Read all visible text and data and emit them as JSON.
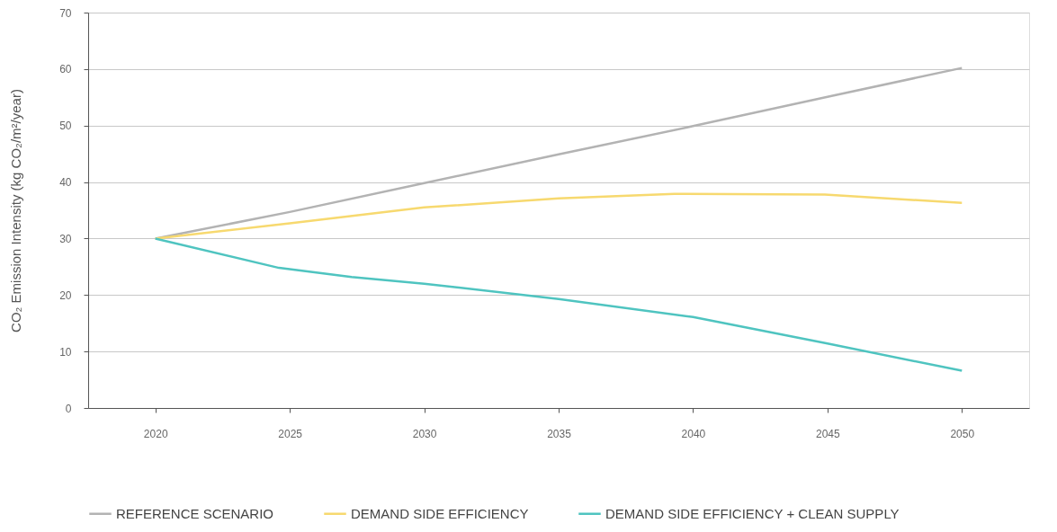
{
  "chart_data": {
    "type": "line",
    "ylabel": "CO₂ Emission Intensity (kg CO₂/m²/year)",
    "xlim": [
      2017.5,
      2052.5
    ],
    "xticks": [
      2020,
      2025,
      2030,
      2035,
      2040,
      2045,
      2050
    ],
    "ylim": [
      0,
      70
    ],
    "yticks": [
      0,
      10,
      20,
      30,
      40,
      50,
      60,
      70
    ],
    "grid": "y",
    "legend": "bottom",
    "marker": "none",
    "line_style": "solid",
    "series": [
      {
        "name": "REFERENCE SCENARIO",
        "color": "#b3b3b3",
        "x": [
          2020,
          2025,
          2030,
          2035,
          2040,
          2045,
          2050
        ],
        "values": [
          30,
          34.7,
          39.8,
          44.9,
          49.9,
          55.1,
          60.2
        ]
      },
      {
        "name": "DEMAND SIDE EFFICIENCY",
        "color": "#f7d96f",
        "x": [
          2020,
          2025,
          2030,
          2035,
          2039.3,
          2044.9,
          2050
        ],
        "values": [
          30,
          32.7,
          35.5,
          37.1,
          37.9,
          37.8,
          36.3
        ]
      },
      {
        "name": "DEMAND SIDE EFFICIENCY + CLEAN SUPPLY",
        "color": "#4fc4c0",
        "x": [
          2020,
          2024.6,
          2027.3,
          2030,
          2035,
          2040,
          2045,
          2050
        ],
        "values": [
          30,
          24.8,
          23.2,
          22.0,
          19.3,
          16.1,
          11.4,
          6.6
        ]
      }
    ]
  }
}
